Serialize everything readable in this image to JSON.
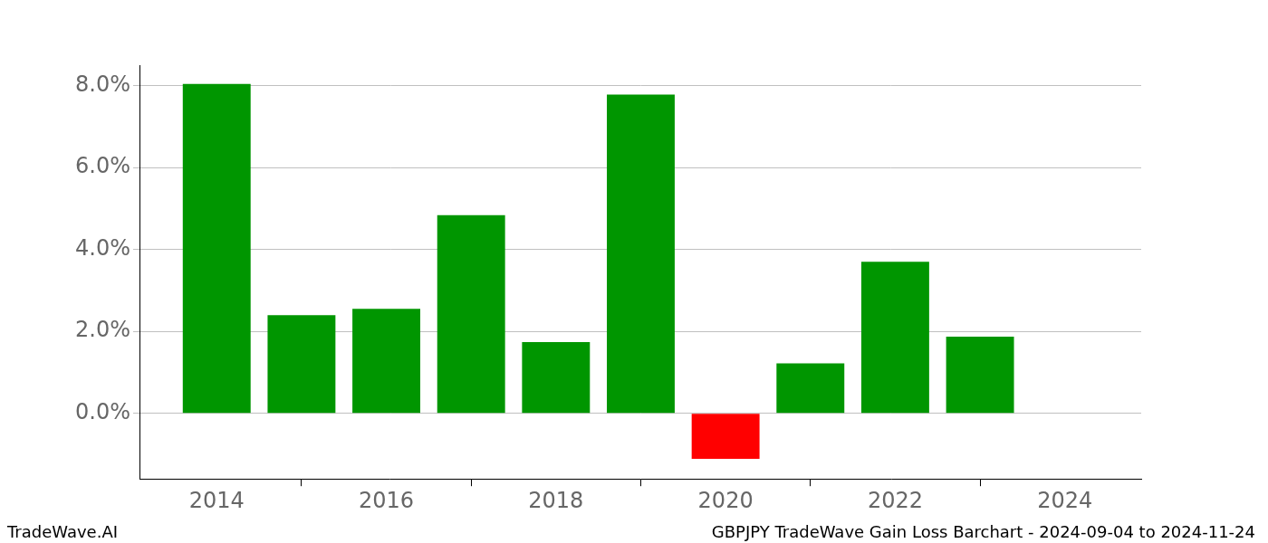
{
  "chart_data": {
    "type": "bar",
    "title": "GBPJPY TradeWave Gain Loss Barchart - 2024-09-04 to 2024-11-24",
    "source": "TradeWave.AI",
    "x": [
      2014,
      2015,
      2016,
      2017,
      2018,
      2019,
      2020,
      2021,
      2022,
      2023
    ],
    "values": [
      8.04,
      2.4,
      2.55,
      4.84,
      1.74,
      7.78,
      -1.11,
      1.22,
      3.7,
      1.87
    ],
    "colors": [
      "#009600",
      "#009600",
      "#009600",
      "#009600",
      "#009600",
      "#009600",
      "#ff0000",
      "#009600",
      "#009600",
      "#009600"
    ],
    "xlim": [
      2013.1,
      2024.9
    ],
    "xticks": [
      2014,
      2016,
      2018,
      2020,
      2022,
      2024
    ],
    "ylim": [
      -1.6,
      8.5
    ],
    "yticks": [
      {
        "value": 0,
        "label": "0.0%"
      },
      {
        "value": 2,
        "label": "2.0%"
      },
      {
        "value": 4,
        "label": "4.0%"
      },
      {
        "value": 6,
        "label": "6.0%"
      },
      {
        "value": 8,
        "label": "8.0%"
      }
    ],
    "grid": "y"
  }
}
